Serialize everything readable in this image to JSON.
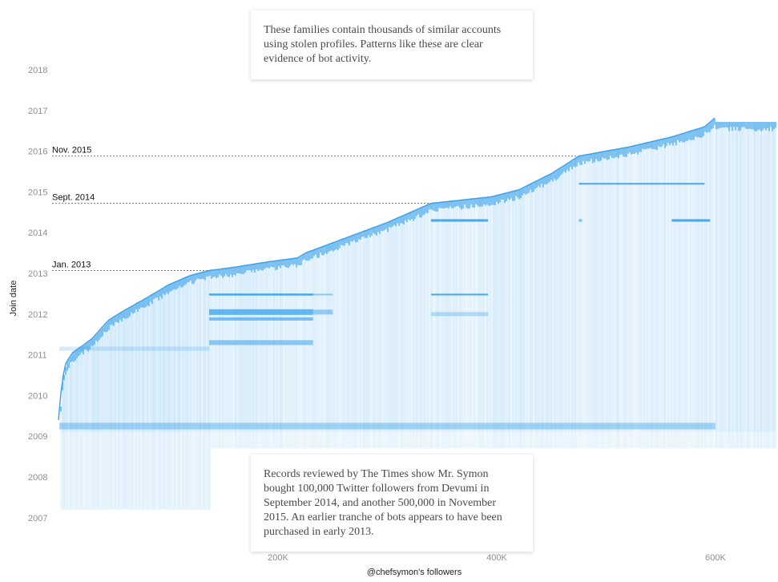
{
  "callouts": {
    "top": "These families contain thousands of similar accounts using stolen profiles. Patterns like these are clear evidence of bot activity.",
    "bottom": "Records reviewed by The Times show Mr. Symon bought 100,000 Twitter followers from Devumi in September 2014, and another 500,000 in November 2015. An earlier tranche of bots appears to have been purchased in early 2013."
  },
  "chart_data": {
    "type": "scatter",
    "xlabel": "@chefsymon's followers",
    "ylabel": "Join date",
    "xlim": [
      0,
      660000
    ],
    "ylim": [
      2006.8,
      2018.3
    ],
    "x_ticks": [
      {
        "value": 200000,
        "label": "200K"
      },
      {
        "value": 400000,
        "label": "400K"
      },
      {
        "value": 600000,
        "label": "600K"
      }
    ],
    "y_ticks": [
      {
        "value": 2007,
        "label": "2007"
      },
      {
        "value": 2008,
        "label": "2008"
      },
      {
        "value": 2009,
        "label": "2009"
      },
      {
        "value": 2010,
        "label": "2010"
      },
      {
        "value": 2011,
        "label": "2011"
      },
      {
        "value": 2012,
        "label": "2012"
      },
      {
        "value": 2013,
        "label": "2013"
      },
      {
        "value": 2014,
        "label": "2014"
      },
      {
        "value": 2015,
        "label": "2015"
      },
      {
        "value": 2016,
        "label": "2016"
      },
      {
        "value": 2017,
        "label": "2017"
      },
      {
        "value": 2018,
        "label": "2018"
      }
    ],
    "annotations": [
      {
        "label": "Nov. 2015",
        "y": 2015.88,
        "x_end": 475000
      },
      {
        "label": "Sept. 2014",
        "y": 2014.72,
        "x_end": 340000
      },
      {
        "label": "Jan. 2013",
        "y": 2013.07,
        "x_end": 137000
      }
    ],
    "point_color": "#2e9be8",
    "grid": false,
    "series": [
      {
        "values": "join-date upper envelope by follower index",
        "x": [
          0,
          2000,
          6000,
          12000,
          20000,
          30000,
          45000,
          60000,
          80000,
          100000,
          120000,
          137000,
          160000,
          190000,
          218000,
          225000,
          250000,
          300000,
          340000,
          395000,
          420000,
          450000,
          475000,
          520000,
          560000,
          590000,
          600000
        ],
        "y": [
          2009.4,
          2010.3,
          2010.8,
          2011.05,
          2011.2,
          2011.4,
          2011.85,
          2012.1,
          2012.4,
          2012.72,
          2012.95,
          2013.07,
          2013.15,
          2013.28,
          2013.38,
          2013.5,
          2013.75,
          2014.25,
          2014.72,
          2014.88,
          2015.05,
          2015.45,
          2015.88,
          2016.1,
          2016.35,
          2016.6,
          2016.83
        ]
      }
    ]
  }
}
